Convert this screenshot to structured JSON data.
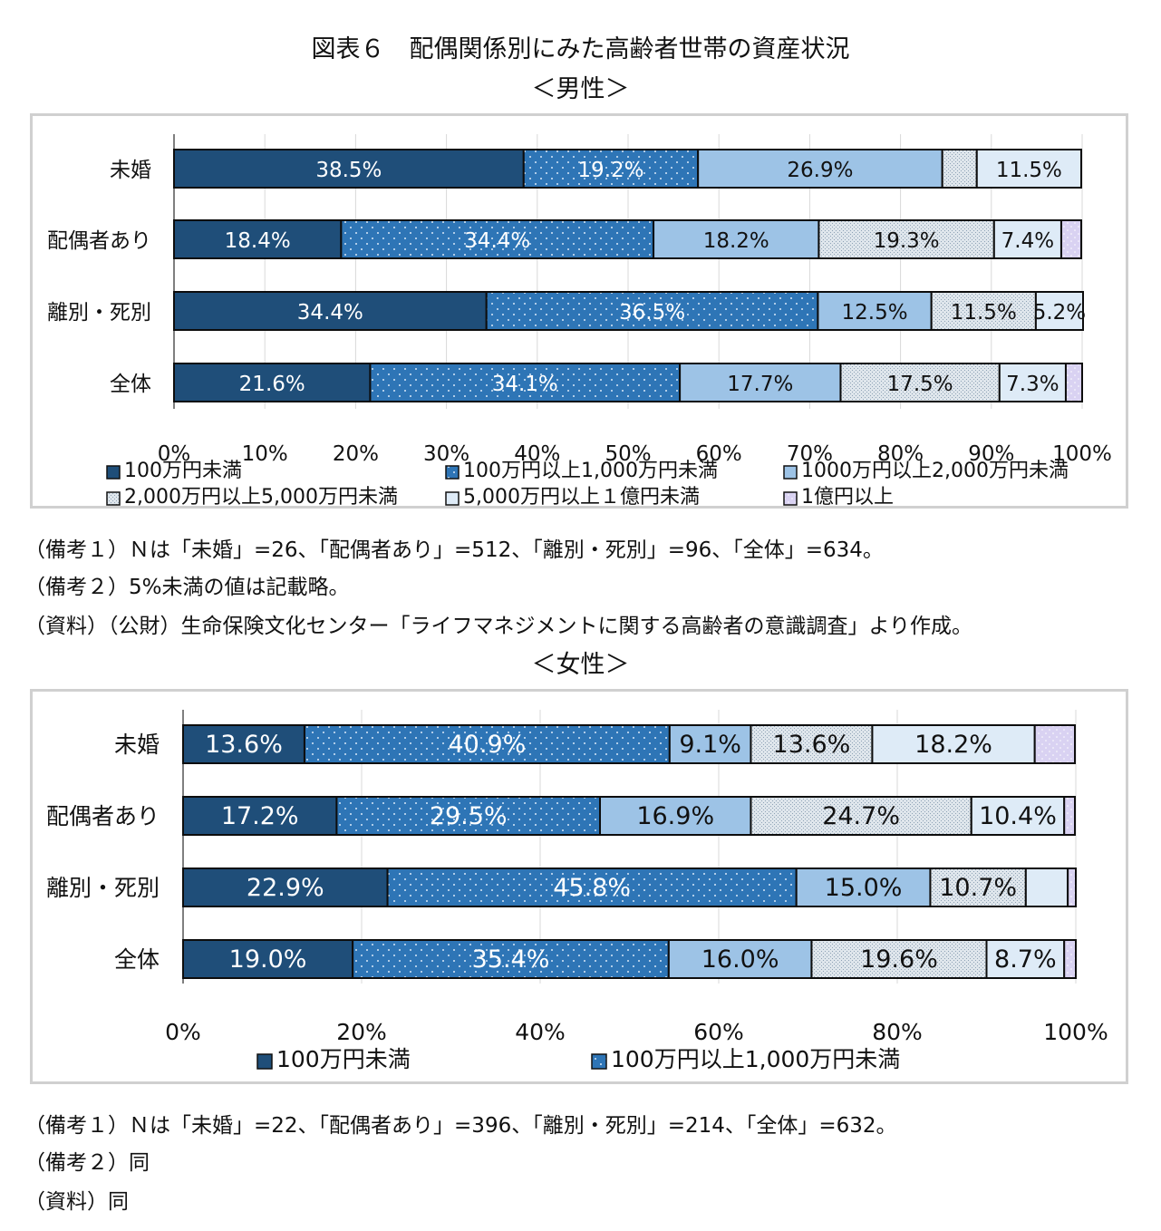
{
  "figure_title": "図表６　配偶関係別にみた高齢者世帯の資産状況",
  "colors": {
    "cat1": "#1f4e79",
    "cat2": "#2e75b6",
    "cat3": "#9dc3e6",
    "cat4": "#c8d4df",
    "cat5": "#deebf7",
    "cat6": "#d9d2f2"
  },
  "male": {
    "subtitle": "＜男性＞",
    "notes": [
      "（備考１）Ｎは「未婚」=26、「配偶者あり」=512、「離別・死別」=96、「全体」=634。",
      "（備考２）5%未満の値は記載略。",
      "（資料）（公財）生命保険文化センター「ライフマネジメントに関する高齢者の意識調査」より作成。"
    ]
  },
  "female": {
    "subtitle": "＜女性＞",
    "notes": [
      "（備考１）Ｎは「未婚」=22、「配偶者あり」=396、「離別・死別」=214、「全体」=632。",
      "（備考２）同",
      "（資料）同"
    ]
  },
  "chart_data": [
    {
      "type": "bar",
      "orientation": "horizontal",
      "stacked": true,
      "percent": true,
      "title": "＜男性＞",
      "categories": [
        "未婚",
        "配偶者あり",
        "離別・死別",
        "全体"
      ],
      "xlim": [
        0,
        100
      ],
      "xticks": [
        "0%",
        "10%",
        "20%",
        "30%",
        "40%",
        "50%",
        "60%",
        "70%",
        "80%",
        "90%",
        "100%"
      ],
      "legend_position": "bottom",
      "series": [
        {
          "name": "100万円未満",
          "values": [
            38.5,
            18.4,
            34.4,
            21.6
          ],
          "labels": [
            "38.5%",
            "18.4%",
            "34.4%",
            "21.6%"
          ]
        },
        {
          "name": "100万円以上1,000万円未満",
          "values": [
            19.2,
            34.4,
            36.5,
            34.1
          ],
          "labels": [
            "19.2%",
            "34.4%",
            "36.5%",
            "34.1%"
          ]
        },
        {
          "name": "1000万円以上2,000万円未満",
          "values": [
            26.9,
            18.2,
            12.5,
            17.7
          ],
          "labels": [
            "26.9%",
            "18.2%",
            "12.5%",
            "17.7%"
          ]
        },
        {
          "name": "2,000万円以上5,000万円未満",
          "values": [
            3.8,
            19.3,
            11.5,
            17.5
          ],
          "labels": [
            "",
            "19.3%",
            "11.5%",
            "17.5%"
          ]
        },
        {
          "name": "5,000万円以上１億円未満",
          "values": [
            11.5,
            7.4,
            5.2,
            7.3
          ],
          "labels": [
            "11.5%",
            "7.4%",
            "5.2%",
            "7.3%"
          ]
        },
        {
          "name": "1億円以上",
          "values": [
            0.0,
            2.2,
            0.0,
            1.8
          ],
          "labels": [
            "",
            "",
            "",
            ""
          ]
        }
      ]
    },
    {
      "type": "bar",
      "orientation": "horizontal",
      "stacked": true,
      "percent": true,
      "title": "＜女性＞",
      "categories": [
        "未婚",
        "配偶者あり",
        "離別・死別",
        "全体"
      ],
      "xlim": [
        0,
        100
      ],
      "xticks": [
        "0%",
        "20%",
        "40%",
        "60%",
        "80%",
        "100%"
      ],
      "legend_position": "bottom",
      "legend_visible": [
        "100万円未満",
        "100万円以上1,000万円未満"
      ],
      "series": [
        {
          "name": "100万円未満",
          "values": [
            13.6,
            17.2,
            22.9,
            19.0
          ],
          "labels": [
            "13.6%",
            "17.2%",
            "22.9%",
            "19.0%"
          ]
        },
        {
          "name": "100万円以上1,000万円未満",
          "values": [
            40.9,
            29.5,
            45.8,
            35.4
          ],
          "labels": [
            "40.9%",
            "29.5%",
            "45.8%",
            "35.4%"
          ]
        },
        {
          "name": "",
          "values": [
            9.1,
            16.9,
            15.0,
            16.0
          ],
          "labels": [
            "9.1%",
            "16.9%",
            "15.0%",
            "16.0%"
          ]
        },
        {
          "name": "",
          "values": [
            13.6,
            24.7,
            10.7,
            19.6
          ],
          "labels": [
            "13.6%",
            "24.7%",
            "10.7%",
            "19.6%"
          ]
        },
        {
          "name": "",
          "values": [
            18.2,
            10.4,
            4.7,
            8.7
          ],
          "labels": [
            "18.2%",
            "10.4%",
            "",
            "8.7%"
          ]
        },
        {
          "name": "",
          "values": [
            4.5,
            1.2,
            0.9,
            1.3
          ],
          "labels": [
            "",
            "",
            "",
            ""
          ]
        }
      ]
    }
  ]
}
